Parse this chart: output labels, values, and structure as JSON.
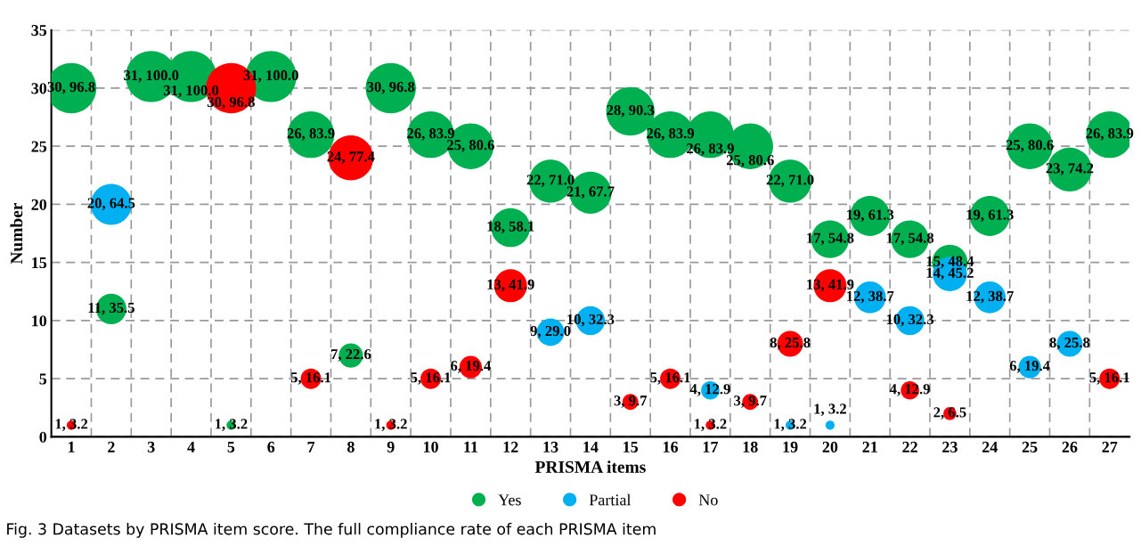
{
  "chart_data": {
    "type": "bubble",
    "xlabel": "PRISMA items",
    "ylabel": "Number",
    "categories": [
      "1",
      "2",
      "3",
      "4",
      "5",
      "6",
      "7",
      "8",
      "9",
      "10",
      "11",
      "12",
      "13",
      "14",
      "15",
      "16",
      "17",
      "18",
      "19",
      "20",
      "21",
      "22",
      "23",
      "24",
      "25",
      "26",
      "27"
    ],
    "ylim": [
      0,
      35
    ],
    "yticks": [
      0,
      5,
      10,
      15,
      20,
      25,
      30,
      35
    ],
    "grid": true,
    "legend": "bottom",
    "marker": "circle",
    "series": [
      {
        "name": "Yes",
        "color": "#00b050",
        "values": [
          30,
          11,
          31,
          31,
          1,
          31,
          26,
          7,
          30,
          26,
          25,
          18,
          22,
          21,
          28,
          26,
          26,
          25,
          22,
          17,
          19,
          17,
          15,
          19,
          25,
          23,
          26
        ],
        "sizes": [
          0.968,
          0.355,
          1.0,
          1.0,
          0.032,
          1.0,
          0.839,
          0.226,
          0.968,
          0.839,
          0.806,
          0.581,
          0.71,
          0.677,
          0.903,
          0.839,
          0.839,
          0.806,
          0.71,
          0.548,
          0.613,
          0.548,
          0.484,
          0.613,
          0.806,
          0.742,
          0.839
        ],
        "value_labels": [
          "30, 96.8",
          "11, 35.5",
          "31, 100.0",
          "31, 100.0",
          "1, 3.2",
          "31, 100.0",
          "26, 83.9",
          "7, 22.6",
          "30, 96.8",
          "26, 83.9",
          "25, 80.6",
          "18, 58.1",
          "22, 71.0",
          "21, 67.7",
          "28, 90.3",
          "26, 83.9",
          "26, 83.9",
          "25, 80.6",
          "22, 71.0",
          "17, 54.8",
          "19, 61.3",
          "17, 54.8",
          "15, 48.4",
          "19, 61.3",
          "25, 80.6",
          "23, 74.2",
          "26, 83.9"
        ]
      },
      {
        "name": "Partial",
        "color": "#00b0f0",
        "values": [
          null,
          20,
          null,
          null,
          null,
          null,
          null,
          null,
          null,
          null,
          null,
          null,
          9,
          10,
          null,
          null,
          4,
          null,
          1,
          1,
          12,
          10,
          14,
          12,
          6,
          8,
          null
        ],
        "sizes": [
          null,
          0.645,
          null,
          null,
          null,
          null,
          null,
          null,
          null,
          null,
          null,
          null,
          0.29,
          0.323,
          null,
          null,
          0.129,
          null,
          0.032,
          0.032,
          0.387,
          0.323,
          0.452,
          0.387,
          0.194,
          0.258,
          null
        ],
        "value_labels": [
          null,
          "20, 64.5",
          null,
          null,
          null,
          null,
          null,
          null,
          null,
          null,
          null,
          null,
          "9, 29.0",
          "10, 32.3",
          null,
          null,
          "4, 12.9",
          null,
          "1, 3.2",
          "1, 3.2",
          "12, 38.7",
          "10, 32.3",
          "14, 45.2",
          "12, 38.7",
          "6, 19.4",
          "8, 25.8",
          null
        ]
      },
      {
        "name": "No",
        "color": "#ff0000",
        "values": [
          1,
          null,
          null,
          null,
          30,
          null,
          5,
          24,
          1,
          5,
          6,
          13,
          null,
          null,
          3,
          5,
          1,
          3,
          8,
          13,
          null,
          4,
          2,
          null,
          null,
          null,
          5
        ],
        "sizes": [
          0.032,
          null,
          null,
          null,
          0.968,
          null,
          0.161,
          0.774,
          0.032,
          0.161,
          0.194,
          0.419,
          null,
          null,
          0.097,
          0.161,
          0.032,
          0.097,
          0.258,
          0.419,
          null,
          0.129,
          0.065,
          null,
          null,
          null,
          0.161
        ],
        "value_labels": [
          "1, 3.2",
          null,
          null,
          null,
          "30, 96.8",
          null,
          "5, 16.1",
          "24, 77.4",
          "1, 3.2",
          "5, 16.1",
          "6, 19.4",
          "13, 41.9",
          null,
          null,
          "3, 9.7",
          "5, 16.1",
          "1, 3.2",
          "3, 9.7",
          "8, 25.8",
          "13, 41.9",
          null,
          "4, 12.9",
          "2, 6.5",
          null,
          null,
          null,
          "5, 16.1"
        ]
      }
    ],
    "annotations": [
      "Fig. 3 Datasets by PRISMA item score. The full compliance rate of each PRISMA item"
    ]
  }
}
